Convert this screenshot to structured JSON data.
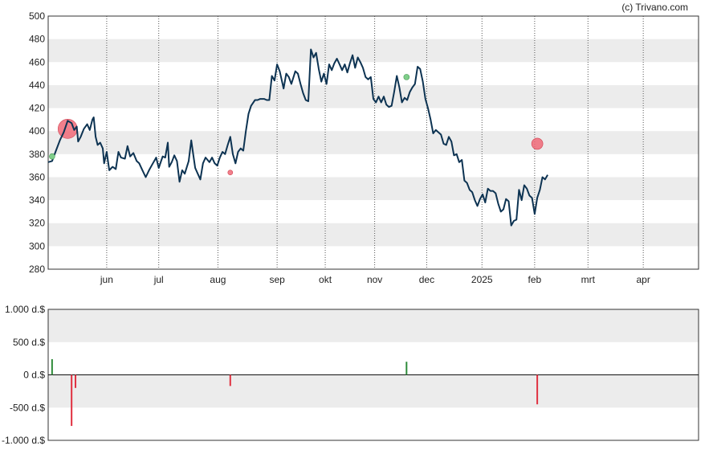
{
  "credit": "(c) Trivano.com",
  "colors": {
    "price_line": "#0d3352",
    "band": "#ececec",
    "buy": "#2e8b3a",
    "sell": "#e03040",
    "buy_marker": "#7fce8a",
    "sell_marker": "#f06a78"
  },
  "chart_data": [
    {
      "type": "line",
      "y_ticks": [
        "500",
        "480",
        "460",
        "440",
        "420",
        "400",
        "380",
        "360",
        "340",
        "320",
        "300",
        "280"
      ],
      "ylim": [
        280,
        500
      ],
      "grid": true,
      "month_labels": [
        "jun",
        "jul",
        "aug",
        "sep",
        "okt",
        "nov",
        "dec",
        "2025",
        "feb",
        "mrt",
        "apr"
      ],
      "x_domain": [
        0,
        1
      ],
      "month_positions": [
        0.09,
        0.17,
        0.261,
        0.352,
        0.426,
        0.502,
        0.582,
        0.667,
        0.748,
        0.83,
        0.915
      ],
      "series": [
        {
          "values": [
            [
              0.0,
              373
            ],
            [
              0.006,
              374
            ],
            [
              0.012,
              383
            ],
            [
              0.018,
              392
            ],
            [
              0.024,
              399
            ],
            [
              0.03,
              409
            ],
            [
              0.036,
              407
            ],
            [
              0.04,
              401
            ],
            [
              0.044,
              404
            ],
            [
              0.046,
              391
            ],
            [
              0.05,
              395
            ],
            [
              0.055,
              402
            ],
            [
              0.06,
              406
            ],
            [
              0.064,
              401
            ],
            [
              0.068,
              410
            ],
            [
              0.07,
              412
            ],
            [
              0.073,
              395
            ],
            [
              0.076,
              388
            ],
            [
              0.08,
              390
            ],
            [
              0.084,
              385
            ],
            [
              0.086,
              372
            ],
            [
              0.09,
              382
            ],
            [
              0.094,
              366
            ],
            [
              0.099,
              369
            ],
            [
              0.104,
              367
            ],
            [
              0.108,
              382
            ],
            [
              0.112,
              377
            ],
            [
              0.118,
              376
            ],
            [
              0.122,
              387
            ],
            [
              0.126,
              378
            ],
            [
              0.131,
              381
            ],
            [
              0.136,
              374
            ],
            [
              0.14,
              372
            ],
            [
              0.145,
              366
            ],
            [
              0.15,
              360
            ],
            [
              0.155,
              366
            ],
            [
              0.16,
              371
            ],
            [
              0.166,
              377
            ],
            [
              0.17,
              368
            ],
            [
              0.176,
              378
            ],
            [
              0.18,
              377
            ],
            [
              0.184,
              390
            ],
            [
              0.186,
              369
            ],
            [
              0.19,
              373
            ],
            [
              0.194,
              379
            ],
            [
              0.198,
              374
            ],
            [
              0.202,
              356
            ],
            [
              0.206,
              366
            ],
            [
              0.21,
              363
            ],
            [
              0.216,
              374
            ],
            [
              0.22,
              392
            ],
            [
              0.223,
              380
            ],
            [
              0.226,
              368
            ],
            [
              0.23,
              363
            ],
            [
              0.234,
              358
            ],
            [
              0.238,
              372
            ],
            [
              0.242,
              377
            ],
            [
              0.248,
              373
            ],
            [
              0.252,
              377
            ],
            [
              0.256,
              372
            ],
            [
              0.26,
              370
            ],
            [
              0.264,
              377
            ],
            [
              0.268,
              382
            ],
            [
              0.272,
              380
            ],
            [
              0.276,
              388
            ],
            [
              0.28,
              395
            ],
            [
              0.284,
              380
            ],
            [
              0.288,
              372
            ],
            [
              0.292,
              382
            ],
            [
              0.296,
              385
            ],
            [
              0.3,
              383
            ],
            [
              0.304,
              400
            ],
            [
              0.308,
              415
            ],
            [
              0.312,
              422
            ],
            [
              0.318,
              427
            ],
            [
              0.322,
              427
            ],
            [
              0.326,
              428
            ],
            [
              0.332,
              428
            ],
            [
              0.336,
              427
            ],
            [
              0.34,
              427
            ],
            [
              0.344,
              448
            ],
            [
              0.348,
              444
            ],
            [
              0.352,
              458
            ],
            [
              0.356,
              452
            ],
            [
              0.362,
              437
            ],
            [
              0.366,
              450
            ],
            [
              0.37,
              447
            ],
            [
              0.374,
              441
            ],
            [
              0.38,
              452
            ],
            [
              0.384,
              450
            ],
            [
              0.388,
              441
            ],
            [
              0.392,
              433
            ],
            [
              0.396,
              427
            ],
            [
              0.4,
              426
            ],
            [
              0.404,
              471
            ],
            [
              0.408,
              464
            ],
            [
              0.412,
              468
            ],
            [
              0.416,
              454
            ],
            [
              0.42,
              443
            ],
            [
              0.424,
              450
            ],
            [
              0.428,
              441
            ],
            [
              0.432,
              458
            ],
            [
              0.436,
              453
            ],
            [
              0.44,
              459
            ],
            [
              0.444,
              463
            ],
            [
              0.448,
              458
            ],
            [
              0.452,
              453
            ],
            [
              0.456,
              458
            ],
            [
              0.46,
              451
            ],
            [
              0.464,
              459
            ],
            [
              0.468,
              466
            ],
            [
              0.472,
              455
            ],
            [
              0.476,
              464
            ],
            [
              0.48,
              460
            ],
            [
              0.484,
              455
            ],
            [
              0.488,
              447
            ],
            [
              0.492,
              445
            ],
            [
              0.496,
              447
            ],
            [
              0.5,
              428
            ],
            [
              0.504,
              425
            ],
            [
              0.508,
              430
            ],
            [
              0.512,
              425
            ],
            [
              0.516,
              430
            ],
            [
              0.52,
              423
            ],
            [
              0.524,
              421
            ],
            [
              0.528,
              422
            ],
            [
              0.532,
              434
            ],
            [
              0.536,
              448
            ],
            [
              0.54,
              438
            ],
            [
              0.544,
              425
            ],
            [
              0.548,
              429
            ],
            [
              0.552,
              427
            ],
            [
              0.556,
              434
            ],
            [
              0.56,
              438
            ],
            [
              0.564,
              441
            ],
            [
              0.568,
              456
            ],
            [
              0.572,
              454
            ],
            [
              0.576,
              443
            ],
            [
              0.58,
              428
            ],
            [
              0.584,
              420
            ],
            [
              0.588,
              410
            ],
            [
              0.592,
              398
            ],
            [
              0.596,
              401
            ],
            [
              0.6,
              399
            ],
            [
              0.604,
              397
            ],
            [
              0.608,
              389
            ],
            [
              0.612,
              388
            ],
            [
              0.616,
              395
            ],
            [
              0.62,
              391
            ],
            [
              0.624,
              379
            ],
            [
              0.628,
              380
            ],
            [
              0.632,
              373
            ],
            [
              0.636,
              375
            ],
            [
              0.64,
              357
            ],
            [
              0.644,
              355
            ],
            [
              0.648,
              349
            ],
            [
              0.652,
              347
            ],
            [
              0.656,
              340
            ],
            [
              0.66,
              335
            ],
            [
              0.664,
              341
            ],
            [
              0.668,
              345
            ],
            [
              0.672,
              338
            ],
            [
              0.676,
              350
            ],
            [
              0.68,
              348
            ],
            [
              0.684,
              348
            ],
            [
              0.688,
              346
            ],
            [
              0.692,
              337
            ],
            [
              0.696,
              330
            ],
            [
              0.7,
              332
            ],
            [
              0.704,
              341
            ],
            [
              0.708,
              339
            ],
            [
              0.712,
              318
            ],
            [
              0.716,
              322
            ],
            [
              0.72,
              323
            ],
            [
              0.724,
              349
            ],
            [
              0.728,
              340
            ],
            [
              0.732,
              353
            ],
            [
              0.736,
              350
            ],
            [
              0.74,
              344
            ],
            [
              0.744,
              342
            ],
            [
              0.748,
              328
            ],
            [
              0.752,
              342
            ],
            [
              0.756,
              349
            ],
            [
              0.76,
              360
            ],
            [
              0.764,
              358
            ],
            [
              0.768,
              362
            ]
          ]
        }
      ],
      "buy_markers": [
        [
          0.006,
          378
        ],
        [
          0.551,
          447
        ]
      ],
      "sell_markers": [
        [
          0.03,
          402,
          "large"
        ],
        [
          0.28,
          364,
          "small"
        ],
        [
          0.752,
          389,
          "medium"
        ]
      ]
    },
    {
      "type": "bar",
      "y_ticks": [
        "1.000 d.$",
        "500 d.$",
        "0 d.$",
        "-500 d.$",
        "-1.000 d.$"
      ],
      "ylim": [
        -1000,
        1000
      ],
      "grid": true,
      "transactions": [
        {
          "x": 0.006,
          "value": 240,
          "side": "buy"
        },
        {
          "x": 0.036,
          "value": -780,
          "side": "sell"
        },
        {
          "x": 0.042,
          "value": -200,
          "side": "sell"
        },
        {
          "x": 0.28,
          "value": -170,
          "side": "sell"
        },
        {
          "x": 0.551,
          "value": 200,
          "side": "buy"
        },
        {
          "x": 0.752,
          "value": -450,
          "side": "sell"
        }
      ]
    }
  ]
}
